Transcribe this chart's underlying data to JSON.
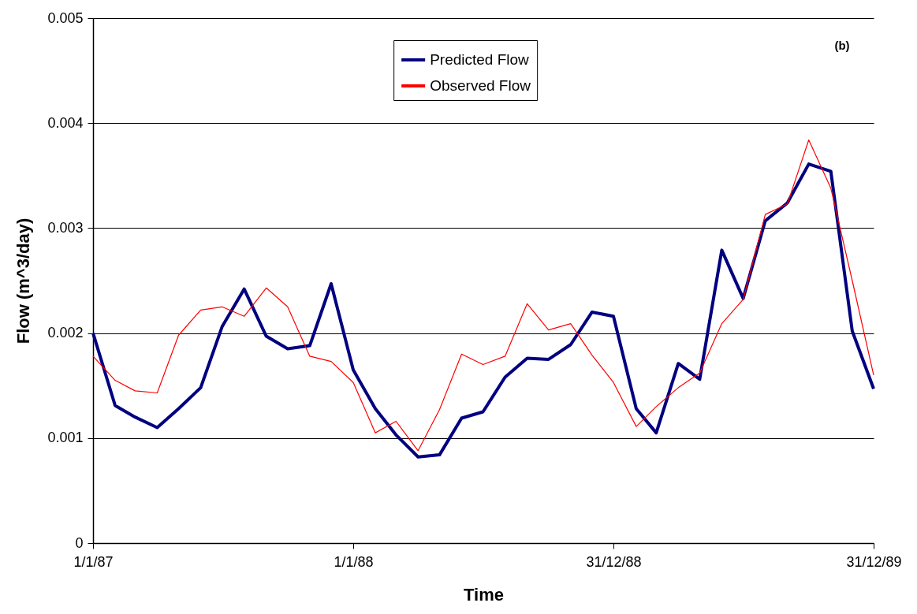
{
  "chart_data": {
    "type": "line",
    "x": [
      "1987-01-01",
      "1987-02-01",
      "1987-03-01",
      "1987-04-01",
      "1987-05-01",
      "1987-06-01",
      "1987-07-01",
      "1987-08-01",
      "1987-09-01",
      "1987-10-01",
      "1987-11-01",
      "1987-12-01",
      "1988-01-01",
      "1988-02-01",
      "1988-03-01",
      "1988-04-01",
      "1988-05-01",
      "1988-06-01",
      "1988-07-01",
      "1988-08-01",
      "1988-09-01",
      "1988-10-01",
      "1988-11-01",
      "1988-12-01",
      "1988-12-31",
      "1989-02-01",
      "1989-03-01",
      "1989-04-01",
      "1989-05-01",
      "1989-06-01",
      "1989-07-01",
      "1989-08-01",
      "1989-09-01",
      "1989-10-01",
      "1989-11-01",
      "1989-12-01",
      "1989-12-31"
    ],
    "series": [
      {
        "name": "Predicted Flow",
        "color": "#000080",
        "values": [
          0.002,
          0.00131,
          0.0012,
          0.0011,
          0.00128,
          0.00148,
          0.00206,
          0.00242,
          0.00197,
          0.00185,
          0.00188,
          0.00247,
          0.00165,
          0.00128,
          0.00103,
          0.00082,
          0.00084,
          0.00119,
          0.00125,
          0.00158,
          0.00176,
          0.00175,
          0.00189,
          0.0022,
          0.00216,
          0.00128,
          0.00105,
          0.00171,
          0.00156,
          0.00279,
          0.00233,
          0.00307,
          0.00324,
          0.00361,
          0.00354,
          0.00202,
          0.00147
        ]
      },
      {
        "name": "Observed Flow",
        "color": "#ff0000",
        "values": [
          0.00178,
          0.00155,
          0.00145,
          0.00143,
          0.00198,
          0.00222,
          0.00225,
          0.00216,
          0.00243,
          0.00225,
          0.00178,
          0.00173,
          0.00153,
          0.00105,
          0.00116,
          0.00088,
          0.00127,
          0.0018,
          0.0017,
          0.00178,
          0.00228,
          0.00203,
          0.00209,
          0.00179,
          0.00153,
          0.00111,
          0.0013,
          0.00148,
          0.00162,
          0.00209,
          0.00232,
          0.00313,
          0.00323,
          0.00384,
          0.00338,
          0.0025,
          0.0016
        ]
      }
    ],
    "xlabel": "Time",
    "ylabel": "Flow (m^3/day)",
    "xlim": [
      "1987-01-01",
      "1989-12-31"
    ],
    "xticks": [
      {
        "value": "1987-01-01",
        "label": "1/1/87"
      },
      {
        "value": "1988-01-01",
        "label": "1/1/88"
      },
      {
        "value": "1988-12-31",
        "label": "31/12/88"
      },
      {
        "value": "1989-12-31",
        "label": "31/12/89"
      }
    ],
    "ylim": [
      0,
      0.005
    ],
    "yticks": [
      0,
      0.001,
      0.002,
      0.003,
      0.004,
      0.005
    ],
    "grid": "y",
    "legend": "top",
    "marker": "none",
    "line_style": "solid",
    "annotations": [
      "(b)"
    ]
  }
}
